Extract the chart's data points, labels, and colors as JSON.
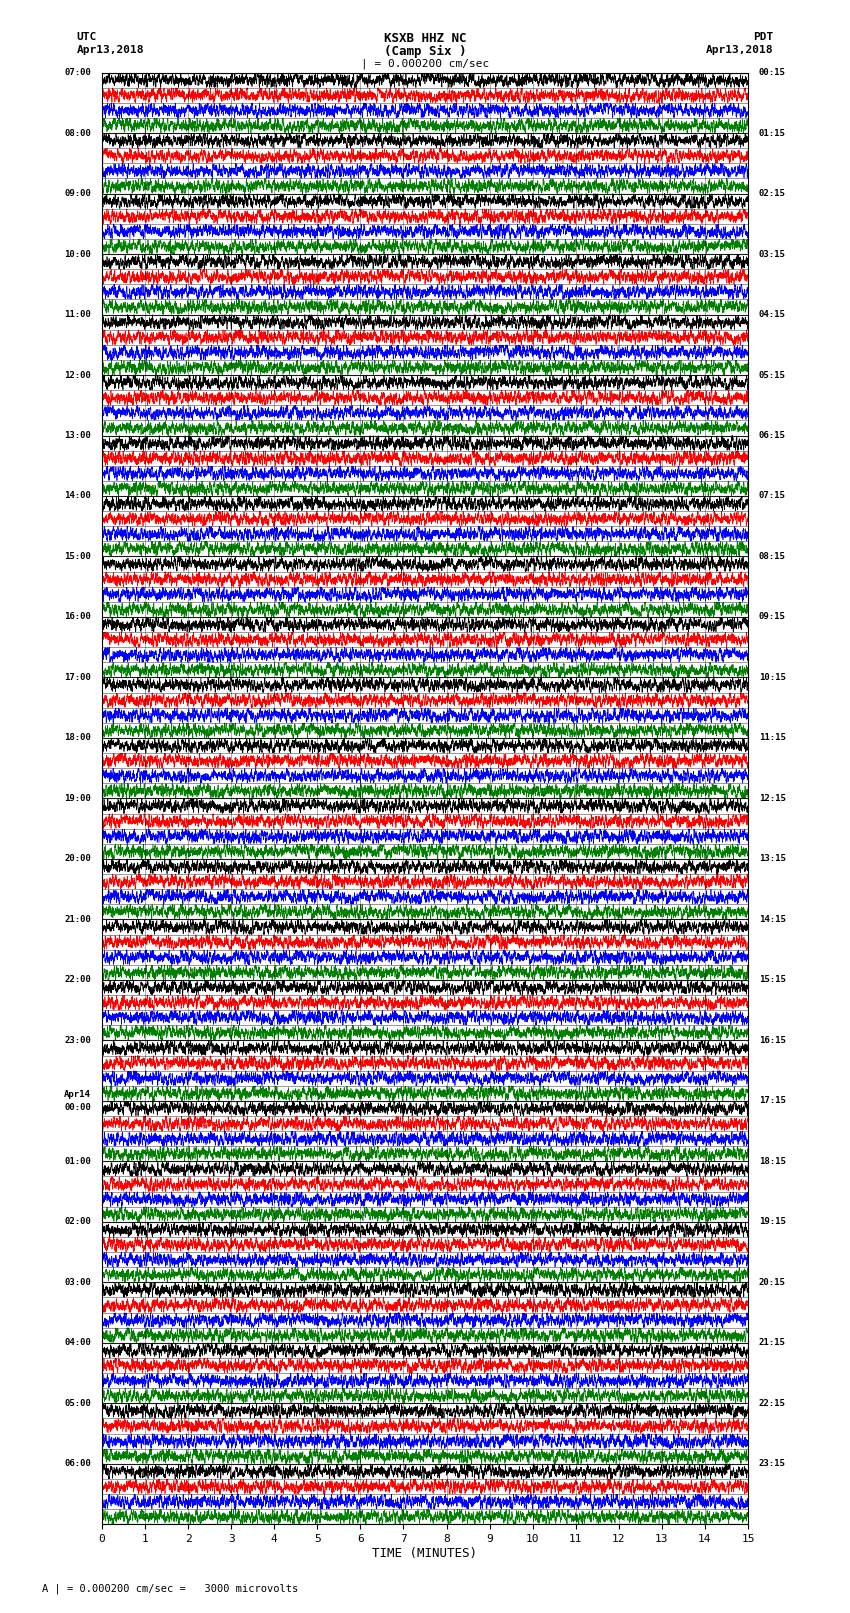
{
  "title_line1": "KSXB HHZ NC",
  "title_line2": "(Camp Six )",
  "title_line3": "| = 0.000200 cm/sec",
  "left_header_line1": "UTC",
  "left_header_line2": "Apr13,2018",
  "right_header_line1": "PDT",
  "right_header_line2": "Apr13,2018",
  "xlabel": "TIME (MINUTES)",
  "footer": "A | = 0.000200 cm/sec =   3000 microvolts",
  "utc_times": [
    "07:00",
    "08:00",
    "09:00",
    "10:00",
    "11:00",
    "12:00",
    "13:00",
    "14:00",
    "15:00",
    "16:00",
    "17:00",
    "18:00",
    "19:00",
    "20:00",
    "21:00",
    "22:00",
    "23:00",
    "Apr14\n00:00",
    "01:00",
    "02:00",
    "03:00",
    "04:00",
    "05:00",
    "06:00"
  ],
  "pdt_times": [
    "00:15",
    "01:15",
    "02:15",
    "03:15",
    "04:15",
    "05:15",
    "06:15",
    "07:15",
    "08:15",
    "09:15",
    "10:15",
    "11:15",
    "12:15",
    "13:15",
    "14:15",
    "15:15",
    "16:15",
    "17:15",
    "18:15",
    "19:15",
    "20:15",
    "21:15",
    "22:15",
    "23:15"
  ],
  "n_rows": 24,
  "n_traces_per_row": 4,
  "trace_colors": [
    "black",
    "red",
    "blue",
    "green"
  ],
  "x_ticks": [
    0,
    1,
    2,
    3,
    4,
    5,
    6,
    7,
    8,
    9,
    10,
    11,
    12,
    13,
    14,
    15
  ],
  "bg_color": "white",
  "plot_bg": "white",
  "minutes_per_row": 15,
  "seed": 42
}
